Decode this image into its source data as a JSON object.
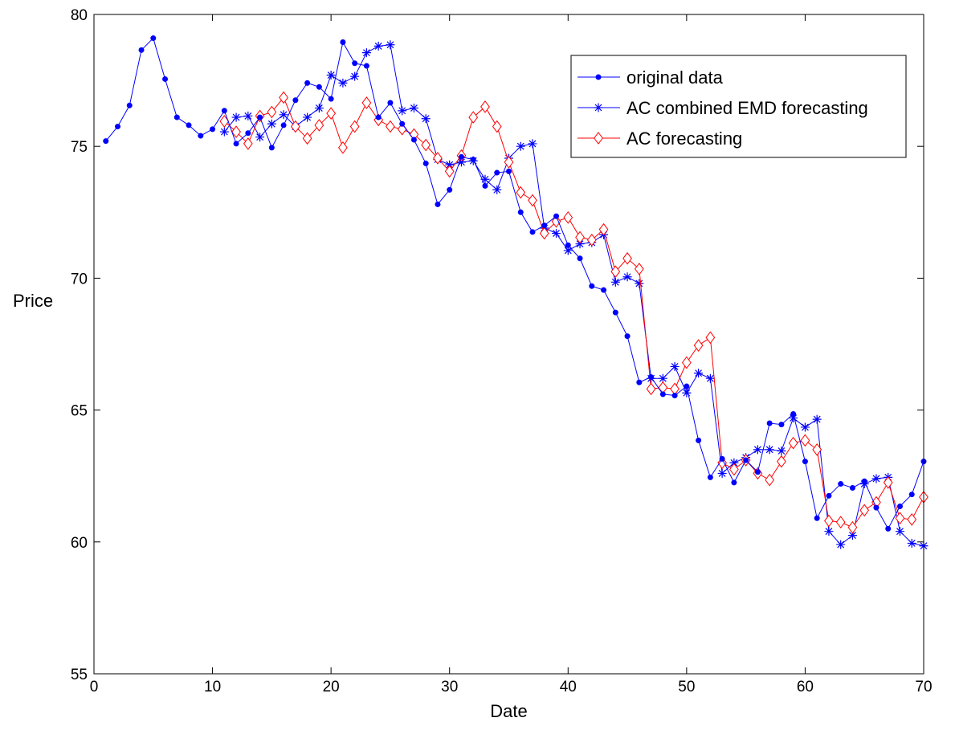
{
  "chart_data": {
    "type": "line",
    "xlabel": "Date",
    "ylabel": "Price",
    "xlim": [
      0,
      70
    ],
    "ylim": [
      55,
      80
    ],
    "xticks": [
      "0",
      "10",
      "20",
      "30",
      "40",
      "50",
      "60",
      "70"
    ],
    "yticks": [
      "55",
      "60",
      "65",
      "70",
      "75",
      "80"
    ],
    "grid": false,
    "legend_position": "top-right",
    "series": [
      {
        "name": "original data",
        "color": "#0000ff",
        "marker": "dot",
        "x": [
          1,
          2,
          3,
          4,
          5,
          6,
          7,
          8,
          9,
          10,
          11,
          12,
          13,
          14,
          15,
          16,
          17,
          18,
          19,
          20,
          21,
          22,
          23,
          24,
          25,
          26,
          27,
          28,
          29,
          30,
          31,
          32,
          33,
          34,
          35,
          36,
          37,
          38,
          39,
          40,
          41,
          42,
          43,
          44,
          45,
          46,
          47,
          48,
          49,
          50,
          51,
          52,
          53,
          54,
          55,
          56,
          57,
          58,
          59,
          60,
          61,
          62,
          63,
          64,
          65,
          66,
          67,
          68,
          69,
          70
        ],
        "values": [
          75.2,
          75.75,
          76.55,
          78.65,
          79.1,
          77.55,
          76.1,
          75.8,
          75.4,
          75.65,
          76.35,
          75.1,
          75.5,
          76.1,
          74.95,
          75.8,
          76.75,
          77.4,
          77.25,
          76.8,
          78.95,
          78.15,
          78.05,
          76.1,
          76.65,
          75.85,
          75.25,
          74.35,
          72.8,
          73.35,
          74.6,
          74.5,
          73.5,
          74.0,
          74.05,
          72.5,
          71.75,
          72.0,
          72.35,
          71.25,
          70.75,
          69.7,
          69.55,
          68.7,
          67.8,
          66.05,
          66.25,
          65.6,
          65.55,
          65.9,
          63.85,
          62.45,
          63.15,
          62.25,
          63.1,
          62.65,
          64.5,
          64.45,
          64.85,
          63.05,
          60.9,
          61.75,
          62.2,
          62.05,
          62.3,
          61.3,
          60.5,
          61.35,
          61.8,
          63.05
        ]
      },
      {
        "name": "AC combined EMD forecasting",
        "color": "#0000ff",
        "marker": "star",
        "x": [
          11,
          12,
          13,
          14,
          15,
          16,
          17,
          18,
          19,
          20,
          21,
          22,
          23,
          24,
          25,
          26,
          27,
          28,
          29,
          30,
          31,
          32,
          33,
          34,
          35,
          36,
          37,
          38,
          39,
          40,
          41,
          42,
          43,
          44,
          45,
          46,
          47,
          48,
          49,
          50,
          51,
          52,
          53,
          54,
          55,
          56,
          57,
          58,
          59,
          60,
          61,
          62,
          63,
          64,
          65,
          66,
          67,
          68,
          69,
          70
        ],
        "values": [
          75.55,
          76.1,
          76.15,
          75.35,
          75.85,
          76.2,
          75.75,
          76.1,
          76.45,
          77.7,
          77.4,
          77.65,
          78.55,
          78.8,
          78.85,
          76.35,
          76.45,
          76.05,
          74.5,
          74.3,
          74.4,
          74.45,
          73.75,
          73.35,
          74.55,
          75.0,
          75.1,
          71.9,
          71.7,
          71.05,
          71.3,
          71.35,
          71.65,
          69.85,
          70.05,
          69.8,
          66.2,
          66.2,
          66.65,
          65.65,
          66.4,
          66.2,
          62.6,
          63.0,
          63.2,
          63.5,
          63.5,
          63.45,
          64.7,
          64.35,
          64.65,
          60.4,
          59.9,
          60.25,
          62.2,
          62.4,
          62.45,
          60.4,
          59.95,
          59.85
        ]
      },
      {
        "name": "AC forecasting",
        "color": "#ff0000",
        "marker": "diamond",
        "x": [
          11,
          12,
          13,
          14,
          15,
          16,
          17,
          18,
          19,
          20,
          21,
          22,
          23,
          24,
          25,
          26,
          27,
          28,
          29,
          30,
          31,
          32,
          33,
          34,
          35,
          36,
          37,
          38,
          39,
          40,
          41,
          42,
          43,
          44,
          45,
          46,
          47,
          48,
          49,
          50,
          51,
          52,
          53,
          54,
          55,
          56,
          57,
          58,
          59,
          60,
          61,
          62,
          63,
          64,
          65,
          66,
          67,
          68,
          69,
          70
        ],
        "values": [
          75.95,
          75.55,
          75.1,
          76.15,
          76.3,
          76.85,
          75.75,
          75.3,
          75.8,
          76.25,
          74.95,
          75.75,
          76.65,
          76.0,
          75.75,
          75.65,
          75.45,
          75.05,
          74.55,
          74.05,
          74.65,
          76.1,
          76.5,
          75.75,
          74.4,
          73.25,
          72.95,
          71.7,
          72.15,
          72.3,
          71.55,
          71.45,
          71.85,
          70.25,
          70.75,
          70.35,
          65.8,
          65.85,
          65.8,
          66.8,
          67.45,
          67.75,
          63.0,
          62.75,
          63.1,
          62.6,
          62.35,
          63.05,
          63.75,
          63.85,
          63.5,
          60.8,
          60.75,
          60.55,
          61.2,
          61.5,
          62.25,
          60.9,
          60.85,
          61.7
        ]
      }
    ]
  }
}
